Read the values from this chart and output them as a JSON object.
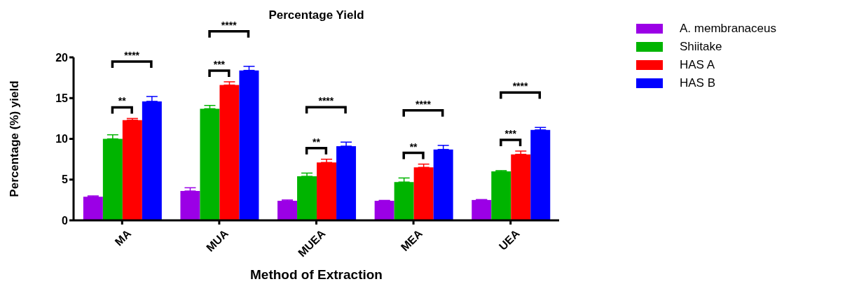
{
  "chart_data": {
    "type": "bar",
    "title": "Percentage Yield",
    "xlabel": "Method of Extraction",
    "ylabel": "Percentage (%) yield",
    "categories": [
      "MA",
      "MUA",
      "MUEA",
      "MEA",
      "UEA"
    ],
    "series": [
      {
        "name": "A. membranaceus",
        "color": "#9b00e6",
        "values": [
          2.9,
          3.6,
          2.4,
          2.4,
          2.5
        ],
        "errors": [
          [
            2.9,
            3.0
          ],
          [
            3.6,
            4.0
          ],
          [
            2.4,
            2.5
          ],
          [
            2.4,
            2.45
          ],
          [
            2.5,
            2.55
          ]
        ]
      },
      {
        "name": "Shiitake",
        "color": "#00b400",
        "values": [
          10.0,
          13.7,
          5.4,
          4.7,
          6.0
        ],
        "errors": [
          [
            10.0,
            10.5
          ],
          [
            13.7,
            14.1
          ],
          [
            5.4,
            5.8
          ],
          [
            4.7,
            5.2
          ],
          [
            6.0,
            6.1
          ]
        ]
      },
      {
        "name": "HAS A",
        "color": "#ff0000",
        "values": [
          12.3,
          16.6,
          7.1,
          6.5,
          8.1
        ],
        "errors": [
          [
            12.3,
            12.5
          ],
          [
            16.6,
            17.0
          ],
          [
            7.1,
            7.5
          ],
          [
            6.5,
            6.9
          ],
          [
            8.1,
            8.5
          ]
        ]
      },
      {
        "name": "HAS B",
        "color": "#0000ff",
        "values": [
          14.6,
          18.4,
          9.1,
          8.7,
          11.1
        ],
        "errors": [
          [
            14.6,
            15.2
          ],
          [
            18.4,
            18.9
          ],
          [
            9.1,
            9.6
          ],
          [
            8.7,
            9.2
          ],
          [
            11.1,
            11.4
          ]
        ]
      }
    ],
    "annotations": [
      "**",
      "****",
      "***",
      "****",
      "**",
      "****",
      "**",
      "****",
      "***",
      "****"
    ],
    "ylim": [
      0,
      20
    ],
    "yticks": [
      0,
      5,
      10,
      15,
      20
    ],
    "grid": false,
    "legend": "top right"
  }
}
